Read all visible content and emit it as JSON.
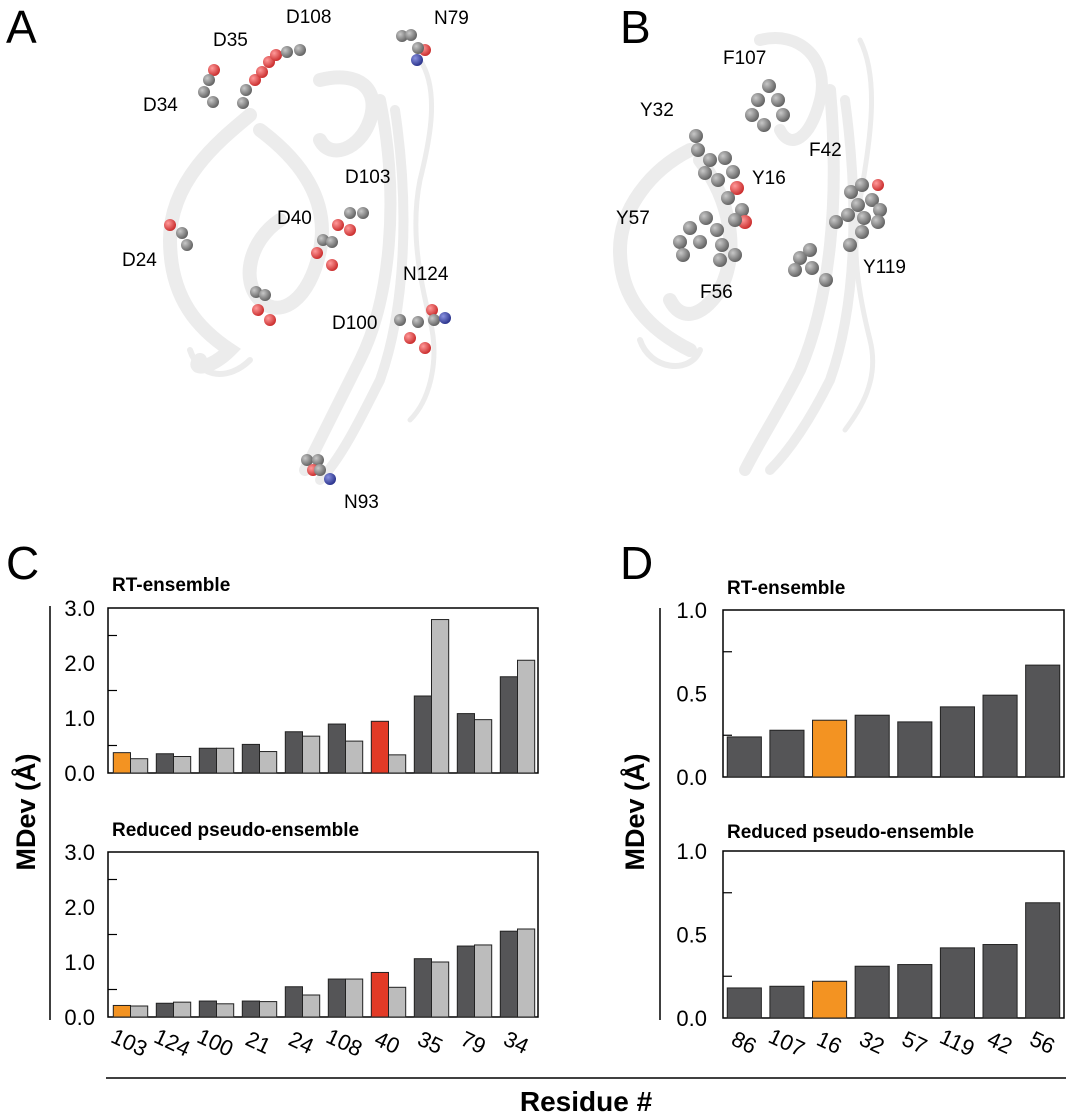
{
  "panels": {
    "A": {
      "letter": "A",
      "residue_labels": [
        "D108",
        "N79",
        "D35",
        "D34",
        "D103",
        "D40",
        "D24",
        "N124",
        "D100",
        "N93"
      ]
    },
    "B": {
      "letter": "B",
      "residue_labels": [
        "F107",
        "Y32",
        "F42",
        "Y16",
        "Y57",
        "Y119",
        "F56"
      ]
    },
    "C": {
      "letter": "C"
    },
    "D": {
      "letter": "D"
    }
  },
  "shared": {
    "ylabel": "MDev (Å)",
    "xlabel": "Residue #"
  },
  "colors": {
    "dark_bar": "#555557",
    "light_bar": "#bcbcbc",
    "highlight_orange": "#f39322",
    "highlight_red": "#e23a26",
    "oxygen": "#e04848",
    "nitrogen": "#3a46a0",
    "carbon": "#7a7a7a",
    "ribbon": "#ececec"
  },
  "chart_data": [
    {
      "id": "C-RT",
      "type": "bar",
      "title": "RT-ensemble",
      "xlabel": "Residue #",
      "ylabel": "MDev (Å)",
      "ylim": [
        0,
        3.0
      ],
      "yticks": [
        "0.0",
        "1.0",
        "2.0",
        "3.0"
      ],
      "categories": [
        "103",
        "124",
        "100",
        "21",
        "24",
        "108",
        "40",
        "35",
        "79",
        "34"
      ],
      "highlight": {
        "0": "orange",
        "6": "red"
      },
      "series": [
        {
          "name": "dark",
          "values": [
            0.37,
            0.35,
            0.45,
            0.52,
            0.75,
            0.89,
            0.94,
            1.4,
            1.08,
            1.75
          ]
        },
        {
          "name": "light",
          "values": [
            0.26,
            0.3,
            0.45,
            0.39,
            0.67,
            0.58,
            0.33,
            2.79,
            0.97,
            2.05
          ]
        }
      ]
    },
    {
      "id": "C-reduced",
      "type": "bar",
      "title": "Reduced pseudo-ensemble",
      "xlabel": "Residue #",
      "ylabel": "MDev (Å)",
      "ylim": [
        0,
        3.0
      ],
      "yticks": [
        "0.0",
        "1.0",
        "2.0",
        "3.0"
      ],
      "categories": [
        "103",
        "124",
        "100",
        "21",
        "24",
        "108",
        "40",
        "35",
        "79",
        "34"
      ],
      "highlight": {
        "0": "orange",
        "6": "red"
      },
      "series": [
        {
          "name": "dark",
          "values": [
            0.21,
            0.25,
            0.29,
            0.29,
            0.55,
            0.69,
            0.81,
            1.06,
            1.29,
            1.56
          ]
        },
        {
          "name": "light",
          "values": [
            0.2,
            0.27,
            0.24,
            0.28,
            0.4,
            0.69,
            0.54,
            1.0,
            1.31,
            1.6
          ]
        }
      ]
    },
    {
      "id": "D-RT",
      "type": "bar",
      "title": "RT-ensemble",
      "xlabel": "Residue #",
      "ylabel": "MDev (Å)",
      "ylim": [
        0,
        1.0
      ],
      "yticks": [
        "0.0",
        "0.5",
        "1.0"
      ],
      "categories": [
        "86",
        "107",
        "16",
        "32",
        "57",
        "119",
        "42",
        "56"
      ],
      "highlight": {
        "2": "orange"
      },
      "series": [
        {
          "name": "dark",
          "values": [
            0.24,
            0.28,
            0.34,
            0.37,
            0.33,
            0.42,
            0.49,
            0.67
          ]
        }
      ]
    },
    {
      "id": "D-reduced",
      "type": "bar",
      "title": "Reduced pseudo-ensemble",
      "xlabel": "Residue #",
      "ylabel": "MDev (Å)",
      "ylim": [
        0,
        1.0
      ],
      "yticks": [
        "0.0",
        "0.5",
        "1.0"
      ],
      "categories": [
        "86",
        "107",
        "16",
        "32",
        "57",
        "119",
        "42",
        "56"
      ],
      "highlight": {
        "2": "orange"
      },
      "series": [
        {
          "name": "dark",
          "values": [
            0.18,
            0.19,
            0.22,
            0.31,
            0.32,
            0.42,
            0.44,
            0.69
          ]
        }
      ]
    }
  ]
}
